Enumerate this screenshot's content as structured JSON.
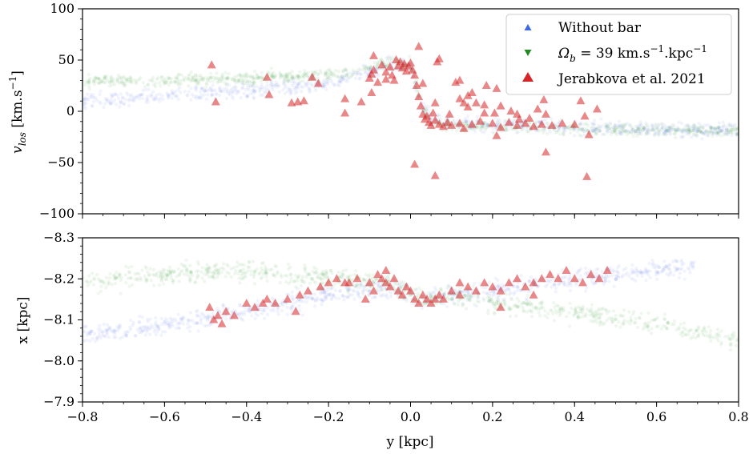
{
  "chart_data": [
    {
      "type": "scatter",
      "panel": "top",
      "xlim": [
        -0.8,
        0.8
      ],
      "ylim": [
        -100,
        100
      ],
      "ylabel": "v_los [km.s⁻¹]",
      "yticks": [
        -100,
        -50,
        0,
        50,
        100
      ],
      "ytick_labels": [
        "−100",
        "−50",
        "0",
        "50",
        "100"
      ],
      "x_tick_labels_shown": false,
      "grid": false,
      "legend_position": "top-right",
      "legend": [
        {
          "label": "Without bar",
          "marker": "triangle-up",
          "color": "#4169e1"
        },
        {
          "label": "Ω_b = 39 km.s⁻¹.kpc⁻¹",
          "marker": "triangle-down",
          "color": "#228b22"
        },
        {
          "label": "Jerabkova et al. 2021",
          "marker": "triangle-up",
          "color": "#d62728"
        }
      ],
      "series": [
        {
          "name": "Without bar",
          "color": "#4169e1",
          "description_curve": {
            "x": [
              -0.8,
              -0.6,
              -0.4,
              -0.2,
              -0.1,
              -0.05,
              0.0,
              0.02,
              0.05,
              0.1,
              0.2,
              0.4,
              0.6,
              0.8
            ],
            "y": [
              10,
              15,
              20,
              27,
              38,
              46,
              44,
              10,
              -8,
              -12,
              -13,
              -15,
              -17,
              -19
            ]
          }
        },
        {
          "name": "Ω_b = 39 km.s⁻¹.kpc⁻¹",
          "color": "#228b22",
          "description_curve": {
            "x": [
              -0.8,
              -0.6,
              -0.4,
              -0.2,
              -0.1,
              -0.05,
              0.0,
              0.02,
              0.05,
              0.1,
              0.2,
              0.4,
              0.6,
              0.8
            ],
            "y": [
              29,
              30,
              32,
              36,
              42,
              47,
              45,
              15,
              -10,
              -14,
              -15,
              -17,
              -18,
              -19
            ]
          }
        },
        {
          "name": "Jerabkova et al. 2021",
          "color": "#d62728",
          "points": [
            [
              -0.485,
              45
            ],
            [
              -0.475,
              9
            ],
            [
              -0.35,
              33
            ],
            [
              -0.345,
              16
            ],
            [
              -0.29,
              8
            ],
            [
              -0.275,
              9
            ],
            [
              -0.24,
              33
            ],
            [
              -0.225,
              27
            ],
            [
              -0.12,
              9
            ],
            [
              -0.1,
              32
            ],
            [
              -0.09,
              54
            ],
            [
              -0.08,
              28
            ],
            [
              -0.07,
              45
            ],
            [
              -0.06,
              38
            ],
            [
              -0.09,
              40
            ],
            [
              -0.05,
              43
            ],
            [
              -0.045,
              35
            ],
            [
              -0.04,
              30
            ],
            [
              -0.035,
              50
            ],
            [
              -0.03,
              44
            ],
            [
              -0.025,
              48
            ],
            [
              -0.02,
              42
            ],
            [
              -0.015,
              46
            ],
            [
              -0.01,
              39
            ],
            [
              -0.005,
              44
            ],
            [
              0.0,
              47
            ],
            [
              0.005,
              40
            ],
            [
              0.01,
              35
            ],
            [
              0.015,
              25
            ],
            [
              0.02,
              14
            ],
            [
              0.025,
              5
            ],
            [
              0.03,
              -3
            ],
            [
              0.035,
              -8
            ],
            [
              0.04,
              -5
            ],
            [
              0.045,
              -11
            ],
            [
              0.05,
              -14
            ],
            [
              0.06,
              -9
            ],
            [
              0.07,
              -13
            ],
            [
              0.08,
              -15
            ],
            [
              0.09,
              -11
            ],
            [
              0.1,
              -14
            ],
            [
              0.12,
              -12
            ],
            [
              0.13,
              -17
            ],
            [
              0.15,
              -13
            ],
            [
              0.17,
              -10
            ],
            [
              0.2,
              -12
            ],
            [
              0.22,
              -16
            ],
            [
              0.24,
              -11
            ],
            [
              0.26,
              -14
            ],
            [
              0.28,
              -12
            ],
            [
              0.3,
              -15
            ],
            [
              0.32,
              -13
            ],
            [
              0.345,
              -14
            ],
            [
              0.37,
              -12
            ],
            [
              0.4,
              -13
            ],
            [
              -0.26,
              10
            ],
            [
              -0.06,
              31
            ],
            [
              -0.095,
              18
            ],
            [
              -0.095,
              36
            ],
            [
              0.02,
              63
            ],
            [
              0.07,
              51
            ],
            [
              0.065,
              48
            ],
            [
              0.11,
              28
            ],
            [
              0.12,
              30
            ],
            [
              0.12,
              12
            ],
            [
              0.13,
              8
            ],
            [
              0.14,
              4
            ],
            [
              0.14,
              15
            ],
            [
              0.15,
              18
            ],
            [
              0.16,
              8
            ],
            [
              0.18,
              6
            ],
            [
              0.18,
              -2
            ],
            [
              0.185,
              25
            ],
            [
              0.205,
              -2
            ],
            [
              0.21,
              22
            ],
            [
              0.22,
              5
            ],
            [
              0.21,
              -24
            ],
            [
              0.245,
              0
            ],
            [
              0.265,
              -8
            ],
            [
              0.26,
              -3
            ],
            [
              0.29,
              -7
            ],
            [
              0.31,
              2
            ],
            [
              0.325,
              11
            ],
            [
              0.33,
              -3
            ],
            [
              0.33,
              -40
            ],
            [
              0.415,
              10
            ],
            [
              0.455,
              2
            ],
            [
              0.425,
              -5
            ],
            [
              0.435,
              -23
            ],
            [
              0.43,
              -64
            ],
            [
              0.01,
              -52
            ],
            [
              0.06,
              -63
            ],
            [
              -0.16,
              -2
            ],
            [
              -0.16,
              12
            ],
            [
              0.03,
              27
            ],
            [
              0.06,
              8
            ],
            [
              0.095,
              -3
            ],
            [
              0.055,
              -2
            ]
          ]
        }
      ]
    },
    {
      "type": "scatter",
      "panel": "bottom",
      "xlim": [
        -0.8,
        0.8
      ],
      "ylim": [
        -7.9,
        -8.3
      ],
      "xlabel": "y [kpc]",
      "ylabel": "x [kpc]",
      "xticks": [
        -0.8,
        -0.6,
        -0.4,
        -0.2,
        0.0,
        0.2,
        0.4,
        0.6,
        0.8
      ],
      "xtick_labels": [
        "−0.8",
        "−0.6",
        "−0.4",
        "−0.2",
        "0.0",
        "0.2",
        "0.4",
        "0.6",
        "0.8"
      ],
      "yticks": [
        -8.3,
        -8.2,
        -8.1,
        -8.0,
        -7.9
      ],
      "ytick_labels": [
        "−8.3",
        "−8.2",
        "−8.1",
        "−8.0",
        "−7.9"
      ],
      "grid": false,
      "series": [
        {
          "name": "Without bar",
          "color": "#4169e1",
          "description_curve": {
            "x": [
              -0.8,
              -0.6,
              -0.4,
              -0.2,
              -0.05,
              0.0,
              0.05,
              0.1,
              0.2,
              0.4,
              0.6,
              0.7
            ],
            "y": [
              -8.06,
              -8.09,
              -8.12,
              -8.16,
              -8.18,
              -8.16,
              -8.15,
              -8.16,
              -8.17,
              -8.2,
              -8.22,
              -8.23
            ]
          }
        },
        {
          "name": "Ω_b = 39 km.s⁻¹.kpc⁻¹",
          "color": "#228b22",
          "description_curve": {
            "x": [
              -0.8,
              -0.6,
              -0.4,
              -0.2,
              -0.1,
              -0.05,
              0.0,
              0.05,
              0.1,
              0.2,
              0.4,
              0.6,
              0.8
            ],
            "y": [
              -8.19,
              -8.21,
              -8.22,
              -8.2,
              -8.19,
              -8.19,
              -8.16,
              -8.15,
              -8.16,
              -8.14,
              -8.12,
              -8.09,
              -8.05
            ]
          }
        },
        {
          "name": "Jerabkova et al. 2021",
          "color": "#d62728",
          "points": [
            [
              -0.49,
              -8.13
            ],
            [
              -0.48,
              -8.1
            ],
            [
              -0.47,
              -8.11
            ],
            [
              -0.46,
              -8.09
            ],
            [
              -0.45,
              -8.12
            ],
            [
              -0.43,
              -8.11
            ],
            [
              -0.4,
              -8.14
            ],
            [
              -0.38,
              -8.13
            ],
            [
              -0.35,
              -8.15
            ],
            [
              -0.33,
              -8.14
            ],
            [
              -0.3,
              -8.15
            ],
            [
              -0.28,
              -8.12
            ],
            [
              -0.27,
              -8.16
            ],
            [
              -0.25,
              -8.17
            ],
            [
              -0.22,
              -8.18
            ],
            [
              -0.2,
              -8.19
            ],
            [
              -0.18,
              -8.2
            ],
            [
              -0.15,
              -8.19
            ],
            [
              -0.13,
              -8.2
            ],
            [
              -0.1,
              -8.19
            ],
            [
              -0.09,
              -8.17
            ],
            [
              -0.08,
              -8.21
            ],
            [
              -0.07,
              -8.2
            ],
            [
              -0.06,
              -8.19
            ],
            [
              -0.05,
              -8.18
            ],
            [
              -0.04,
              -8.2
            ],
            [
              -0.03,
              -8.17
            ],
            [
              -0.02,
              -8.16
            ],
            [
              -0.01,
              -8.18
            ],
            [
              0.0,
              -8.17
            ],
            [
              0.01,
              -8.15
            ],
            [
              0.02,
              -8.14
            ],
            [
              0.03,
              -8.16
            ],
            [
              0.04,
              -8.15
            ],
            [
              0.05,
              -8.14
            ],
            [
              0.06,
              -8.15
            ],
            [
              0.07,
              -8.16
            ],
            [
              0.08,
              -8.15
            ],
            [
              0.1,
              -8.17
            ],
            [
              0.12,
              -8.16
            ],
            [
              0.14,
              -8.18
            ],
            [
              0.16,
              -8.17
            ],
            [
              0.18,
              -8.19
            ],
            [
              0.2,
              -8.18
            ],
            [
              0.22,
              -8.17
            ],
            [
              0.24,
              -8.19
            ],
            [
              0.26,
              -8.2
            ],
            [
              0.28,
              -8.18
            ],
            [
              0.3,
              -8.19
            ],
            [
              0.32,
              -8.2
            ],
            [
              0.34,
              -8.21
            ],
            [
              0.36,
              -8.2
            ],
            [
              0.38,
              -8.22
            ],
            [
              0.4,
              -8.2
            ],
            [
              0.42,
              -8.19
            ],
            [
              0.44,
              -8.21
            ],
            [
              0.46,
              -8.2
            ],
            [
              0.48,
              -8.22
            ],
            [
              -0.36,
              -8.14
            ],
            [
              -0.16,
              -8.19
            ],
            [
              0.12,
              -8.19
            ],
            [
              0.22,
              -8.13
            ],
            [
              0.3,
              -8.16
            ],
            [
              -0.11,
              -8.15
            ],
            [
              -0.06,
              -8.22
            ]
          ]
        }
      ]
    }
  ]
}
